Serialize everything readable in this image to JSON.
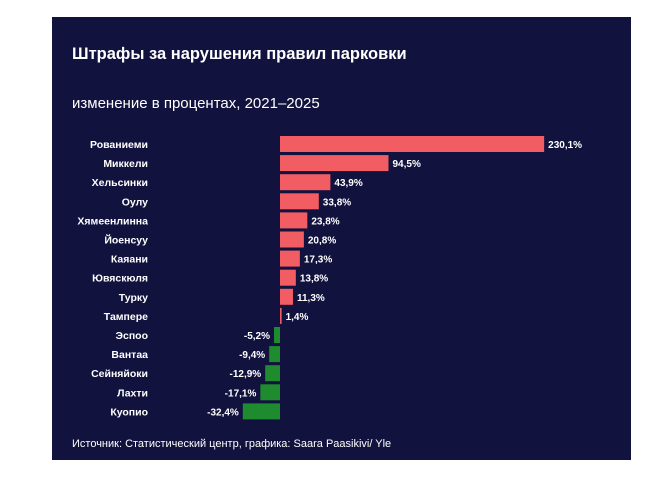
{
  "title": "Штрафы за нарушения правил парковки",
  "subtitle": "изменение в процентах, 2021–2025",
  "source": "Источник: Статистический центр, графика: Saara Paasikivi/ Yle",
  "colors": {
    "background": "#12123f",
    "positive": "#f25c63",
    "negative": "#1e8c2e",
    "text": "#ffffff"
  },
  "chart_data": {
    "type": "bar",
    "orientation": "horizontal",
    "title": "Штрафы за нарушения правил парковки",
    "subtitle": "изменение в процентах, 2021–2025",
    "categories": [
      "Рованиеми",
      "Миккели",
      "Хельсинки",
      "Оулу",
      "Хямеенлинна",
      "Йоенсуу",
      "Каяани",
      "Ювяскюля",
      "Турку",
      "Тампере",
      "Эспоо",
      "Вантаа",
      "Сейняйоки",
      "Лахти",
      "Куопио"
    ],
    "values": [
      230.1,
      94.5,
      43.9,
      33.8,
      23.8,
      20.8,
      17.3,
      13.8,
      11.3,
      1.4,
      -5.2,
      -9.4,
      -12.9,
      -17.1,
      -32.4
    ],
    "labels": [
      "230,1%",
      "94,5%",
      "43,9%",
      "33,8%",
      "23,8%",
      "20,8%",
      "17,3%",
      "13,8%",
      "11,3%",
      "1,4%",
      "-5,2%",
      "-9,4%",
      "-12,9%",
      "-17,1%",
      "-32,4%"
    ],
    "xlabel": "",
    "ylabel": "",
    "grid": false,
    "legend": "none"
  }
}
